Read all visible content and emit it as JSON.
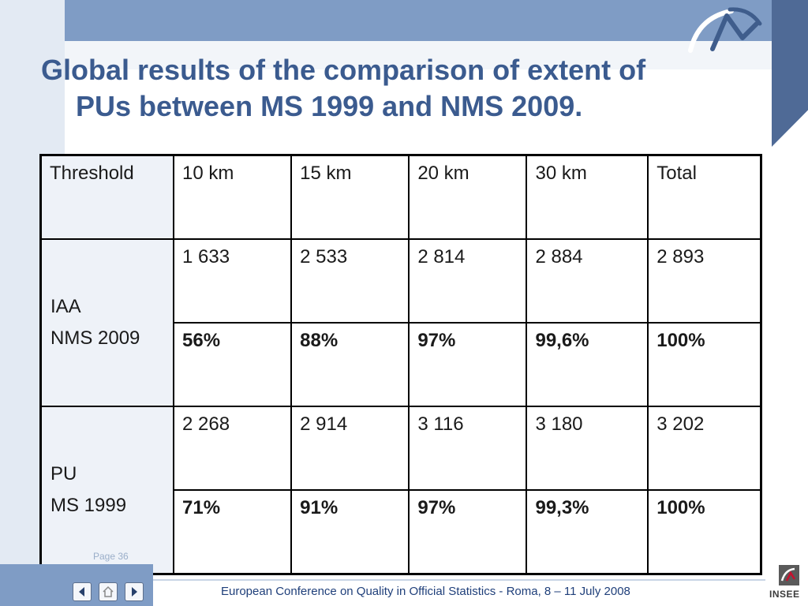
{
  "title": {
    "line1": "Global results of the comparison of extent of",
    "line2": "PUs between MS 1999 and NMS 2009."
  },
  "table": {
    "headers": [
      "Threshold",
      "10 km",
      "15 km",
      "20 km",
      "30 km",
      "Total"
    ],
    "groups": [
      {
        "label_line1": "IAA",
        "label_line2": "NMS 2009",
        "counts": [
          "1 633",
          "2 533",
          "2 814",
          "2 884",
          "2 893"
        ],
        "percents": [
          "56%",
          "88%",
          "97%",
          "99,6%",
          "100%"
        ]
      },
      {
        "label_line1": "PU",
        "label_line2": "MS 1999",
        "counts": [
          "2 268",
          "2 914",
          "3 116",
          "3 180",
          "3 202"
        ],
        "percents": [
          "71%",
          "91%",
          "97%",
          "99,3%",
          "100%"
        ]
      }
    ]
  },
  "footer": {
    "page": "Page 36",
    "text": "European Conference on Quality in Official Statistics -  Roma, 8 – 11 July 2008",
    "logo_text": "INSEE"
  },
  "nav_icons": [
    "arrow-left-icon",
    "home-icon",
    "arrow-right-icon"
  ],
  "colors": {
    "title": "#3b5b8f",
    "accent_band": "#7f9cc5",
    "dark_corner": "#4f6a96",
    "footer_text": "#1f3f7a"
  }
}
